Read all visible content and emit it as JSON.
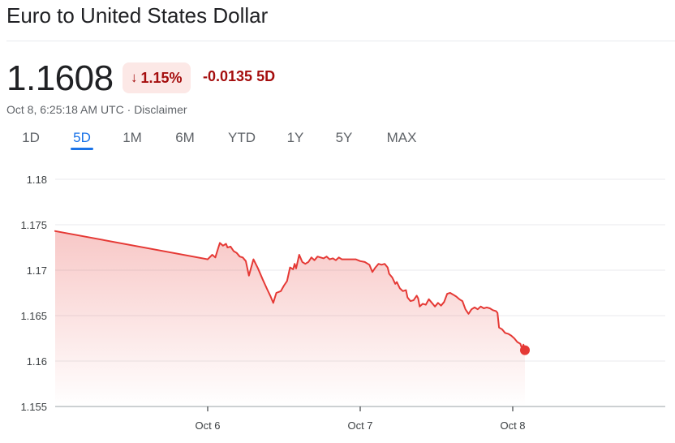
{
  "header": {
    "title": "Euro to United States Dollar",
    "price": "1.1608",
    "percent_change": "1.15%",
    "change_arrow_icon": "arrow-down-icon",
    "abs_change": "-0.0135",
    "period": "5D",
    "timestamp": "Oct 8, 6:25:18 AM UTC",
    "separator": "·",
    "disclaimer": "Disclaimer"
  },
  "tabs": [
    {
      "label": "1D",
      "active": false
    },
    {
      "label": "5D",
      "active": true
    },
    {
      "label": "1M",
      "active": false
    },
    {
      "label": "6M",
      "active": false
    },
    {
      "label": "YTD",
      "active": false
    },
    {
      "label": "1Y",
      "active": false
    },
    {
      "label": "5Y",
      "active": false
    },
    {
      "label": "MAX",
      "active": false
    }
  ],
  "colors": {
    "line": "#e53935",
    "negative_text": "#a50e0e",
    "badge_bg": "#fce8e6",
    "accent": "#1a73e8"
  },
  "chart_data": {
    "type": "area",
    "ylim": [
      1.155,
      1.18
    ],
    "yticks": [
      "1.18",
      "1.175",
      "1.17",
      "1.165",
      "1.16",
      "1.155"
    ],
    "xlim": [
      0,
      5.0
    ],
    "xticks": [
      {
        "label": "Oct 6",
        "value": 1.0
      },
      {
        "label": "Oct 7",
        "value": 2.0
      },
      {
        "label": "Oct 8",
        "value": 3.0
      }
    ],
    "grid": true,
    "series": [
      {
        "points": [
          [
            0.0,
            1.1743
          ],
          [
            1.0,
            1.1712
          ],
          [
            1.03,
            1.1717
          ],
          [
            1.05,
            1.1714
          ],
          [
            1.07,
            1.1725
          ],
          [
            1.08,
            1.173
          ],
          [
            1.1,
            1.1727
          ],
          [
            1.12,
            1.1729
          ],
          [
            1.13,
            1.1725
          ],
          [
            1.15,
            1.1726
          ],
          [
            1.17,
            1.1721
          ],
          [
            1.19,
            1.1719
          ],
          [
            1.21,
            1.1715
          ],
          [
            1.23,
            1.1714
          ],
          [
            1.25,
            1.171
          ],
          [
            1.27,
            1.1694
          ],
          [
            1.3,
            1.1712
          ],
          [
            1.33,
            1.1702
          ],
          [
            1.36,
            1.169
          ],
          [
            1.39,
            1.1679
          ],
          [
            1.41,
            1.1672
          ],
          [
            1.43,
            1.1664
          ],
          [
            1.45,
            1.1675
          ],
          [
            1.48,
            1.1677
          ],
          [
            1.5,
            1.1683
          ],
          [
            1.52,
            1.1688
          ],
          [
            1.54,
            1.1703
          ],
          [
            1.56,
            1.1701
          ],
          [
            1.57,
            1.1707
          ],
          [
            1.58,
            1.1702
          ],
          [
            1.6,
            1.1717
          ],
          [
            1.62,
            1.1709
          ],
          [
            1.64,
            1.1707
          ],
          [
            1.66,
            1.1709
          ],
          [
            1.68,
            1.1714
          ],
          [
            1.7,
            1.1711
          ],
          [
            1.72,
            1.1715
          ],
          [
            1.74,
            1.1714
          ],
          [
            1.76,
            1.1713
          ],
          [
            1.78,
            1.1715
          ],
          [
            1.8,
            1.1712
          ],
          [
            1.82,
            1.1713
          ],
          [
            1.84,
            1.1711
          ],
          [
            1.86,
            1.1714
          ],
          [
            1.88,
            1.1712
          ],
          [
            1.91,
            1.1712
          ],
          [
            1.94,
            1.1712
          ],
          [
            1.97,
            1.1712
          ],
          [
            2.0,
            1.171
          ],
          [
            2.03,
            1.1709
          ],
          [
            2.06,
            1.1706
          ],
          [
            2.08,
            1.1698
          ],
          [
            2.1,
            1.1703
          ],
          [
            2.12,
            1.1707
          ],
          [
            2.14,
            1.1706
          ],
          [
            2.16,
            1.1707
          ],
          [
            2.18,
            1.1703
          ],
          [
            2.19,
            1.1696
          ],
          [
            2.21,
            1.1692
          ],
          [
            2.23,
            1.1685
          ],
          [
            2.24,
            1.1687
          ],
          [
            2.26,
            1.168
          ],
          [
            2.28,
            1.1677
          ],
          [
            2.3,
            1.1678
          ],
          [
            2.31,
            1.167
          ],
          [
            2.33,
            1.1666
          ],
          [
            2.35,
            1.1667
          ],
          [
            2.37,
            1.1672
          ],
          [
            2.38,
            1.1669
          ],
          [
            2.39,
            1.166
          ],
          [
            2.41,
            1.1663
          ],
          [
            2.43,
            1.1662
          ],
          [
            2.45,
            1.1668
          ],
          [
            2.47,
            1.1664
          ],
          [
            2.49,
            1.166
          ],
          [
            2.51,
            1.1664
          ],
          [
            2.53,
            1.1661
          ],
          [
            2.55,
            1.1665
          ],
          [
            2.57,
            1.1674
          ],
          [
            2.59,
            1.1675
          ],
          [
            2.61,
            1.1673
          ],
          [
            2.63,
            1.1671
          ],
          [
            2.65,
            1.1668
          ],
          [
            2.67,
            1.1666
          ],
          [
            2.69,
            1.1657
          ],
          [
            2.71,
            1.1652
          ],
          [
            2.73,
            1.1657
          ],
          [
            2.75,
            1.1659
          ],
          [
            2.77,
            1.1657
          ],
          [
            2.79,
            1.166
          ],
          [
            2.81,
            1.1658
          ],
          [
            2.83,
            1.1659
          ],
          [
            2.85,
            1.1658
          ],
          [
            2.87,
            1.1656
          ],
          [
            2.89,
            1.1655
          ],
          [
            2.9,
            1.1653
          ],
          [
            2.91,
            1.1637
          ],
          [
            2.93,
            1.1635
          ],
          [
            2.95,
            1.1631
          ],
          [
            2.97,
            1.163
          ],
          [
            2.99,
            1.1628
          ],
          [
            3.01,
            1.1625
          ],
          [
            3.03,
            1.1621
          ],
          [
            3.05,
            1.1619
          ],
          [
            3.06,
            1.1614
          ],
          [
            3.07,
            1.1618
          ],
          [
            3.08,
            1.1612
          ]
        ]
      }
    ]
  }
}
